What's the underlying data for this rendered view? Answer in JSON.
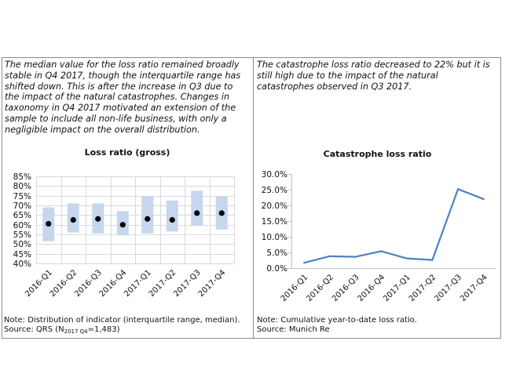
{
  "left_panel": {
    "text_lines": [
      "The median value for the loss ratio remained broadly",
      "stable in Q4 2017, though the interquartile range has",
      "shifted down. This is after the increase in Q3 due to",
      "the impact of the natural catastrophes. Changes in",
      "taxonomy in Q4 2017 motivated an extension of the",
      "sample to include all non-life business, with only a",
      "negligible impact on the overall distribution."
    ],
    "note": "Note: Distribution of indicator (interquartile range, median).",
    "source_prefix": "Source: QRS (N",
    "source_subscript": "2017 Q4",
    "source_suffix": "=1,483)"
  },
  "right_panel": {
    "text_lines": [
      "The catastrophe loss ratio decreased to 22% but it is",
      "still high due to the impact of the natural",
      "catastrophes observed in Q3 2017."
    ],
    "note": "Note: Cumulative year-to-date loss ratio.",
    "source": "Source: Munich Re"
  },
  "colors": {
    "iqr_fill": "#c5d6ed",
    "median_marker": "#000000",
    "line": "#4f81bd",
    "gridline": "#d9d9d9",
    "axis": "#bfbfbf",
    "border": "#8c8c8c",
    "text": "#111111"
  },
  "chart_data": [
    {
      "type": "bar",
      "title": "Loss ratio (gross)",
      "categories": [
        "2016-Q1",
        "2016-Q2",
        "2016-Q3",
        "2016-Q4",
        "2017-Q1",
        "2017-Q2",
        "2017-Q3",
        "2017-Q4"
      ],
      "low": [
        51.5,
        56.0,
        55.5,
        54.5,
        55.5,
        56.5,
        59.5,
        57.5
      ],
      "high": [
        69.0,
        71.0,
        71.0,
        67.0,
        74.5,
        72.5,
        77.5,
        74.5
      ],
      "median": [
        60.5,
        62.5,
        63.0,
        60.0,
        63.0,
        62.5,
        66.0,
        66.0
      ],
      "ylim": [
        40,
        85
      ],
      "yticks": [
        85,
        80,
        75,
        70,
        65,
        60,
        55,
        50,
        45,
        40
      ],
      "ytick_labels": [
        "85%",
        "80%",
        "75%",
        "70%",
        "65%",
        "60%",
        "55%",
        "50%",
        "45%",
        "40%"
      ],
      "grid": true
    },
    {
      "type": "line",
      "title": "Catastrophe loss ratio",
      "categories": [
        "2016-Q1",
        "2016-Q2",
        "2016-Q3",
        "2016-Q4",
        "2017-Q1",
        "2017-Q2",
        "2017-Q3",
        "2017-Q4"
      ],
      "values": [
        1.7,
        3.8,
        3.6,
        5.4,
        3.1,
        2.6,
        25.2,
        22.0
      ],
      "ylim": [
        0,
        30
      ],
      "yticks": [
        30,
        25,
        20,
        15,
        10,
        5,
        0
      ],
      "ytick_labels": [
        "30.0%",
        "25.0%",
        "20.0%",
        "15.0%",
        "10.0%",
        "5.0%",
        "0.0%"
      ],
      "grid": false
    }
  ]
}
